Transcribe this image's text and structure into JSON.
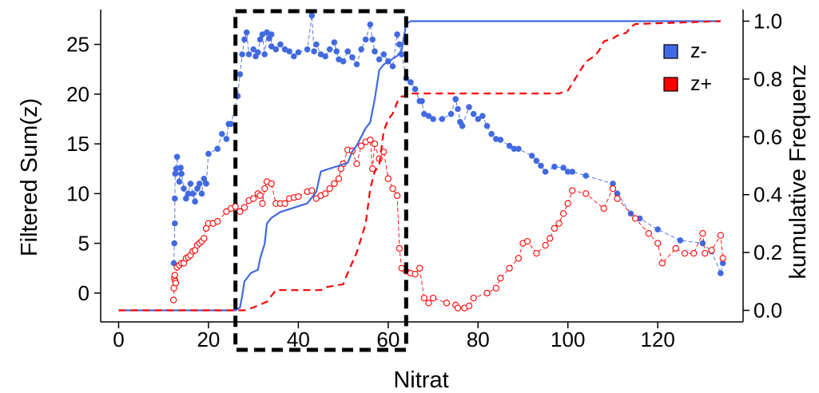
{
  "chart_data": {
    "type": "scatter",
    "xlabel": "Nitrat",
    "ylabel_left": "Filtered Sum(z)",
    "ylabel_right": "kumulative Frequenz",
    "xlim": [
      -4,
      139
    ],
    "ylim_left": [
      -2.9,
      28.5
    ],
    "ylim_right": [
      -0.04,
      1.04
    ],
    "x_ticks": [
      0,
      20,
      40,
      60,
      80,
      100,
      120
    ],
    "y_left_ticks": [
      0,
      5,
      10,
      15,
      20,
      25
    ],
    "y_right_ticks": [
      0.0,
      0.2,
      0.4,
      0.6,
      0.8,
      1.0
    ],
    "x_tick_labels": [
      "0",
      "20",
      "40",
      "60",
      "80",
      "100",
      "120"
    ],
    "y_left_tick_labels": [
      "0",
      "5",
      "10",
      "15",
      "20",
      "25"
    ],
    "y_right_tick_labels": [
      "0.0",
      "0.2",
      "0.4",
      "0.6",
      "0.8",
      "1.0"
    ],
    "legend": {
      "placement": "top-right",
      "entries": [
        {
          "label": "z-",
          "color": "#4169E1"
        },
        {
          "label": "z+",
          "color": "#FF0000"
        }
      ]
    },
    "highlight_box": {
      "x": [
        26,
        64
      ],
      "style": "dashed"
    },
    "colors": {
      "z_minus": "#4169E1",
      "z_plus": "#FF0000",
      "axis": "#000000"
    },
    "series": [
      {
        "name": "z-",
        "kind": "points",
        "marker": "filled-circle",
        "color": "#4169E1",
        "axis": "left",
        "points": [
          [
            12.3,
            3
          ],
          [
            12.4,
            5
          ],
          [
            12.5,
            7
          ],
          [
            12.5,
            9.5
          ],
          [
            12.6,
            12
          ],
          [
            12.8,
            12.5
          ],
          [
            13,
            13.7
          ],
          [
            13.5,
            11.2
          ],
          [
            13.8,
            12.6
          ],
          [
            14,
            12
          ],
          [
            14.5,
            10.5
          ],
          [
            15,
            9.5
          ],
          [
            15.5,
            10
          ],
          [
            16,
            11
          ],
          [
            16.5,
            10
          ],
          [
            17,
            9.2
          ],
          [
            17.5,
            10.5
          ],
          [
            18,
            11
          ],
          [
            18.5,
            10
          ],
          [
            19,
            11.5
          ],
          [
            19.5,
            11
          ],
          [
            20,
            14
          ],
          [
            22,
            14.5
          ],
          [
            23,
            16
          ],
          [
            24,
            15.5
          ],
          [
            24.5,
            17
          ],
          [
            25,
            17
          ],
          [
            26.5,
            19.8
          ],
          [
            27,
            22
          ],
          [
            27.5,
            24
          ],
          [
            28,
            25.5
          ],
          [
            28.5,
            26.2
          ],
          [
            29,
            24
          ],
          [
            30,
            24.5
          ],
          [
            30.5,
            23.8
          ],
          [
            31,
            24.2
          ],
          [
            31.5,
            25.5
          ],
          [
            32,
            26
          ],
          [
            32.5,
            24
          ],
          [
            33,
            26.2
          ],
          [
            33.5,
            25.6
          ],
          [
            34,
            26
          ],
          [
            34,
            24.8
          ],
          [
            35,
            24.5
          ],
          [
            36,
            25
          ],
          [
            37,
            24.5
          ],
          [
            38,
            24.3
          ],
          [
            39,
            23.8
          ],
          [
            40,
            24.2
          ],
          [
            42,
            24.5
          ],
          [
            43,
            27.9
          ],
          [
            43.5,
            24.3
          ],
          [
            44,
            25
          ],
          [
            45,
            24
          ],
          [
            46,
            23.8
          ],
          [
            47,
            24.5
          ],
          [
            48,
            25.2
          ],
          [
            48.5,
            24.3
          ],
          [
            49,
            23.5
          ],
          [
            50,
            23.3
          ],
          [
            51,
            24.3
          ],
          [
            52,
            23.7
          ],
          [
            53,
            23
          ],
          [
            54,
            24.5
          ],
          [
            55,
            25.5
          ],
          [
            56,
            27
          ],
          [
            56.5,
            25.5
          ],
          [
            57,
            24.3
          ],
          [
            58,
            23.5
          ],
          [
            59,
            24
          ],
          [
            60,
            23.3
          ],
          [
            61,
            22.8
          ],
          [
            62,
            26
          ],
          [
            62.5,
            25
          ],
          [
            63,
            24
          ],
          [
            64,
            21.6
          ],
          [
            65,
            21.2
          ],
          [
            66,
            20.5
          ],
          [
            67,
            19.3
          ],
          [
            67.5,
            19.3
          ],
          [
            68,
            18
          ],
          [
            69,
            17.8
          ],
          [
            70,
            17.5
          ],
          [
            72,
            17.5
          ],
          [
            74,
            18
          ],
          [
            75,
            19.5
          ],
          [
            75.5,
            18.5
          ],
          [
            76,
            17.2
          ],
          [
            76.5,
            16.8
          ],
          [
            78,
            18.7
          ],
          [
            79,
            18
          ],
          [
            80,
            17.5
          ],
          [
            81,
            17.8
          ],
          [
            82,
            16.8
          ],
          [
            83,
            16
          ],
          [
            84,
            15.5
          ],
          [
            85,
            15.4
          ],
          [
            87,
            14.8
          ],
          [
            88,
            14.5
          ],
          [
            89,
            14.5
          ],
          [
            92,
            13.8
          ],
          [
            93,
            13.3
          ],
          [
            94,
            12.8
          ],
          [
            95,
            12.2
          ],
          [
            97,
            12.7
          ],
          [
            99,
            12.6
          ],
          [
            100,
            12.2
          ],
          [
            101,
            12.2
          ],
          [
            104,
            11.8
          ],
          [
            110,
            11
          ],
          [
            111,
            10
          ],
          [
            114,
            8
          ],
          [
            116,
            7.5
          ],
          [
            120,
            6.4
          ],
          [
            125,
            5.3
          ],
          [
            130,
            5
          ],
          [
            132,
            4.2
          ],
          [
            134,
            2
          ],
          [
            134.5,
            3
          ]
        ]
      },
      {
        "name": "z+",
        "kind": "points",
        "marker": "open-circle",
        "color": "#FF0000",
        "axis": "left",
        "points": [
          [
            12.2,
            -0.7
          ],
          [
            12.3,
            0.5
          ],
          [
            12.4,
            1.5
          ],
          [
            12.5,
            1.8
          ],
          [
            12.6,
            1.2
          ],
          [
            12.7,
            1
          ],
          [
            13,
            2.6
          ],
          [
            13.5,
            2.8
          ],
          [
            14,
            3
          ],
          [
            14.5,
            3
          ],
          [
            15,
            3.5
          ],
          [
            15.5,
            3.6
          ],
          [
            16,
            3.8
          ],
          [
            16.5,
            4.2
          ],
          [
            17,
            4.3
          ],
          [
            17.5,
            4.8
          ],
          [
            18,
            5
          ],
          [
            18.5,
            5.2
          ],
          [
            19,
            5.5
          ],
          [
            19.5,
            6.5
          ],
          [
            20,
            7
          ],
          [
            21,
            7
          ],
          [
            22,
            7.2
          ],
          [
            24,
            8.2
          ],
          [
            25,
            8.5
          ],
          [
            26,
            8.7
          ],
          [
            27,
            8.2
          ],
          [
            28,
            8.6
          ],
          [
            29,
            9.3
          ],
          [
            30,
            9.5
          ],
          [
            31,
            10
          ],
          [
            31.5,
            9.8
          ],
          [
            32,
            9
          ],
          [
            32.5,
            10.5
          ],
          [
            33,
            11.2
          ],
          [
            34,
            11
          ],
          [
            35,
            9
          ],
          [
            36,
            9
          ],
          [
            37,
            9
          ],
          [
            38,
            9.5
          ],
          [
            39,
            9.6
          ],
          [
            40,
            9.7
          ],
          [
            42,
            10.2
          ],
          [
            43,
            10.3
          ],
          [
            44,
            9.5
          ],
          [
            45,
            9.8
          ],
          [
            46,
            10
          ],
          [
            47,
            10.5
          ],
          [
            48,
            11
          ],
          [
            49,
            11.5
          ],
          [
            49.5,
            12.5
          ],
          [
            50,
            13
          ],
          [
            51,
            14.4
          ],
          [
            52,
            14.3
          ],
          [
            53,
            13
          ],
          [
            54,
            14.8
          ],
          [
            55,
            15.2
          ],
          [
            56,
            15.4
          ],
          [
            56.5,
            12.5
          ],
          [
            57,
            15
          ],
          [
            58,
            13.5
          ],
          [
            59,
            14.2
          ],
          [
            60,
            11.5
          ],
          [
            61,
            10.5
          ],
          [
            62,
            9.8
          ],
          [
            62.5,
            4.5
          ],
          [
            63,
            2.5
          ],
          [
            64,
            2.2
          ],
          [
            65,
            2
          ],
          [
            66,
            1.9
          ],
          [
            67,
            2.5
          ],
          [
            68,
            -0.5
          ],
          [
            69,
            -1
          ],
          [
            70,
            -0.5
          ],
          [
            73,
            -1
          ],
          [
            75,
            -1.2
          ],
          [
            75.5,
            -1.5
          ],
          [
            77,
            -1.5
          ],
          [
            78,
            -1.3
          ],
          [
            79,
            -0.5
          ],
          [
            82,
            0
          ],
          [
            84,
            0.5
          ],
          [
            85,
            1.5
          ],
          [
            87,
            2.5
          ],
          [
            89,
            3.5
          ],
          [
            90,
            5
          ],
          [
            91,
            5.2
          ],
          [
            93,
            4
          ],
          [
            95,
            4.8
          ],
          [
            96,
            5.5
          ],
          [
            97,
            6.5
          ],
          [
            98,
            7
          ],
          [
            99,
            8
          ],
          [
            100,
            9
          ],
          [
            101,
            10.3
          ],
          [
            104,
            10
          ],
          [
            108,
            8.5
          ],
          [
            110,
            10.5
          ],
          [
            111,
            9.5
          ],
          [
            115,
            7.5
          ],
          [
            118,
            6
          ],
          [
            120,
            5
          ],
          [
            121,
            3
          ],
          [
            124,
            4.5
          ],
          [
            126,
            4
          ],
          [
            128,
            4
          ],
          [
            130,
            6
          ],
          [
            130.5,
            4
          ],
          [
            132,
            4.3
          ],
          [
            134,
            5.8
          ],
          [
            134.5,
            3.5
          ]
        ]
      },
      {
        "name": "z-",
        "kind": "line",
        "style": "solid",
        "color": "#4169E1",
        "axis": "right",
        "points": [
          [
            0,
            0
          ],
          [
            26,
            0
          ],
          [
            27,
            0.01
          ],
          [
            27.5,
            0.05
          ],
          [
            28,
            0.1
          ],
          [
            29.5,
            0.13
          ],
          [
            31,
            0.14
          ],
          [
            31.5,
            0.18
          ],
          [
            32.5,
            0.23
          ],
          [
            33,
            0.3
          ],
          [
            34,
            0.32
          ],
          [
            36,
            0.34
          ],
          [
            38,
            0.35
          ],
          [
            40,
            0.36
          ],
          [
            42,
            0.37
          ],
          [
            44,
            0.41
          ],
          [
            45,
            0.48
          ],
          [
            47,
            0.49
          ],
          [
            49,
            0.5
          ],
          [
            51,
            0.51
          ],
          [
            52,
            0.55
          ],
          [
            53,
            0.57
          ],
          [
            54,
            0.6
          ],
          [
            55,
            0.63
          ],
          [
            56,
            0.65
          ],
          [
            57,
            0.73
          ],
          [
            58,
            0.83
          ],
          [
            59,
            0.85
          ],
          [
            60,
            0.86
          ],
          [
            61,
            0.87
          ],
          [
            62,
            0.88
          ],
          [
            63,
            0.9
          ],
          [
            64,
            0.99
          ],
          [
            65,
            1.0
          ],
          [
            134,
            1.0
          ]
        ]
      },
      {
        "name": "z+",
        "kind": "line",
        "style": "dashed",
        "color": "#FF0000",
        "axis": "right",
        "points": [
          [
            0,
            0
          ],
          [
            28,
            0
          ],
          [
            30,
            0.01
          ],
          [
            33,
            0.03
          ],
          [
            34,
            0.05
          ],
          [
            35,
            0.07
          ],
          [
            45,
            0.07
          ],
          [
            46,
            0.08
          ],
          [
            50,
            0.09
          ],
          [
            51,
            0.13
          ],
          [
            53,
            0.2
          ],
          [
            54,
            0.25
          ],
          [
            55,
            0.3
          ],
          [
            56,
            0.42
          ],
          [
            57,
            0.48
          ],
          [
            58,
            0.5
          ],
          [
            59,
            0.62
          ],
          [
            60,
            0.66
          ],
          [
            61,
            0.68
          ],
          [
            62,
            0.72
          ],
          [
            63,
            0.74
          ],
          [
            64,
            0.74
          ],
          [
            65,
            0.75
          ],
          [
            98,
            0.75
          ],
          [
            100,
            0.76
          ],
          [
            102,
            0.81
          ],
          [
            104,
            0.86
          ],
          [
            106,
            0.88
          ],
          [
            107,
            0.9
          ],
          [
            108,
            0.93
          ],
          [
            110,
            0.94
          ],
          [
            111,
            0.95
          ],
          [
            113,
            0.96
          ],
          [
            114,
            0.98
          ],
          [
            115,
            0.99
          ],
          [
            134,
            1.0
          ]
        ]
      }
    ]
  }
}
